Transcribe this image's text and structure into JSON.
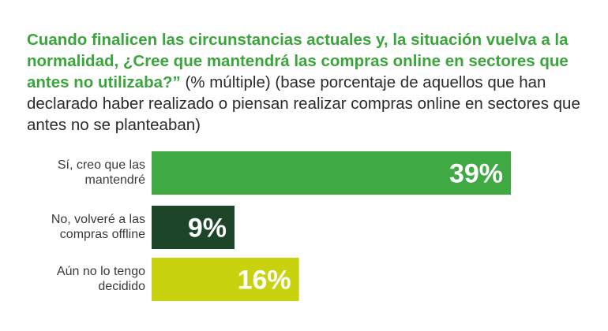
{
  "title": {
    "question": "Cuando finalicen las circunstancias actuales y, la situación vuelva a la normalidad, ¿Cree que mantendrá las compras online en sectores que antes no utilizaba?”",
    "note": "(% múltiple) (base porcentaje de aquellos que han declarado haber realizado o piensan realizar compras online en sectores que antes no se planteaban)"
  },
  "chart_data": {
    "type": "bar",
    "orientation": "horizontal",
    "categories": [
      [
        "Sí, creo que las",
        "mantendré"
      ],
      [
        "No, volveré a las",
        "compras offline"
      ],
      [
        "Aún no lo tengo",
        "decidido"
      ]
    ],
    "values": [
      39,
      9,
      16
    ],
    "value_labels": [
      "39%",
      "9%",
      "16%"
    ],
    "colors": [
      "#3fa943",
      "#1d4529",
      "#c9d20e"
    ],
    "xlim": [
      0,
      39
    ],
    "grid": false
  }
}
